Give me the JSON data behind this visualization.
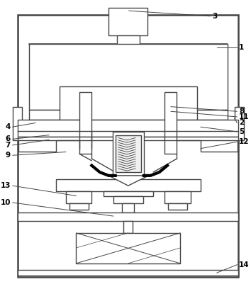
{
  "bg_color": "#ffffff",
  "lc": "#444444",
  "lw_heavy": 1.8,
  "lw_med": 1.0,
  "lw_thin": 0.7,
  "fig_width": 3.54,
  "fig_height": 4.08,
  "dpi": 100
}
